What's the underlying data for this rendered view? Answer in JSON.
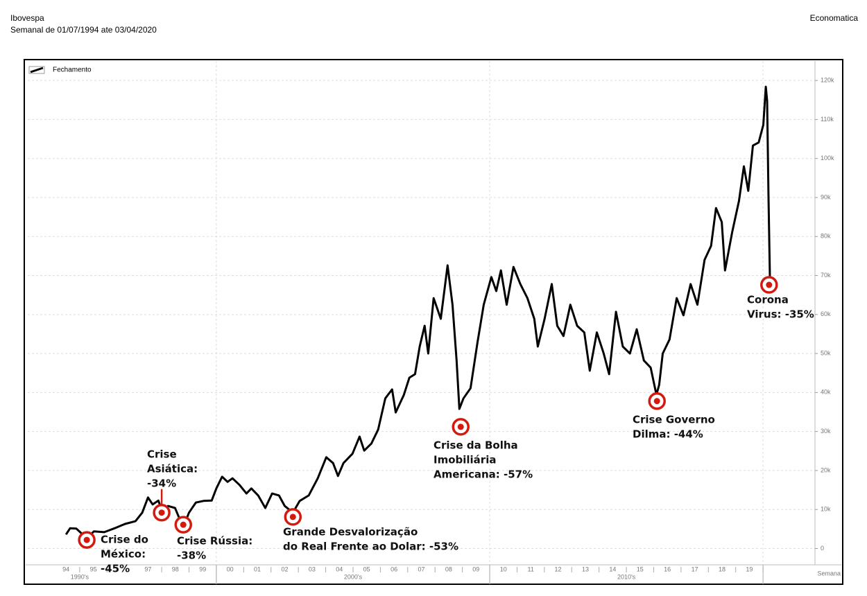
{
  "header": {
    "title": "Ibovespa",
    "subtitle": "Semanal de 01/07/1994 ate 03/04/2020",
    "source": "Economatica"
  },
  "chart_data": {
    "type": "line",
    "legend": "top-left",
    "x_axis_label": "Semana",
    "grid": true,
    "xlim": [
      1993.1,
      2021.9
    ],
    "ylim": [
      -4000,
      125000
    ],
    "yticks": [
      0,
      {
        "value": 10000,
        "label": "10k"
      },
      {
        "value": 20000,
        "label": "20k"
      },
      {
        "value": 30000,
        "label": "30k"
      },
      {
        "value": 40000,
        "label": "40k"
      },
      {
        "value": 50000,
        "label": "50k"
      },
      {
        "value": 60000,
        "label": "60k"
      },
      {
        "value": 70000,
        "label": "70k"
      },
      {
        "value": 80000,
        "label": "80k"
      },
      {
        "value": 90000,
        "label": "90k"
      },
      {
        "value": 100000,
        "label": "100k"
      },
      {
        "value": 110000,
        "label": "110k"
      },
      {
        "value": 120000,
        "label": "120k"
      }
    ],
    "xticks": [
      {
        "value": 1994.5,
        "label": "94"
      },
      {
        "value": 1995.5,
        "label": "95"
      },
      {
        "value": 1997.5,
        "label": "97"
      },
      {
        "value": 1998.5,
        "label": "98"
      },
      {
        "value": 1999.5,
        "label": "99"
      },
      {
        "value": 2000.5,
        "label": "00"
      },
      {
        "value": 2001.5,
        "label": "01"
      },
      {
        "value": 2002.5,
        "label": "02"
      },
      {
        "value": 2003.5,
        "label": "03"
      },
      {
        "value": 2004.5,
        "label": "04"
      },
      {
        "value": 2005.5,
        "label": "05"
      },
      {
        "value": 2006.5,
        "label": "06"
      },
      {
        "value": 2007.5,
        "label": "07"
      },
      {
        "value": 2008.5,
        "label": "08"
      },
      {
        "value": 2009.5,
        "label": "09"
      },
      {
        "value": 2010.5,
        "label": "10"
      },
      {
        "value": 2011.5,
        "label": "11"
      },
      {
        "value": 2012.5,
        "label": "12"
      },
      {
        "value": 2013.5,
        "label": "13"
      },
      {
        "value": 2014.5,
        "label": "14"
      },
      {
        "value": 2015.5,
        "label": "15"
      },
      {
        "value": 2016.5,
        "label": "16"
      },
      {
        "value": 2017.5,
        "label": "17"
      },
      {
        "value": 2018.5,
        "label": "18"
      },
      {
        "value": 2019.5,
        "label": "19"
      }
    ],
    "decade_ticks": [
      {
        "value": 1995,
        "label": "1990's"
      },
      {
        "value": 2005,
        "label": "2000's"
      },
      {
        "value": 2015,
        "label": "2010's"
      }
    ],
    "series": [
      {
        "name": "Fechamento",
        "color": "#000000",
        "x": [
          1994.5,
          1994.65,
          1994.88,
          1995.08,
          1995.26,
          1995.52,
          1995.9,
          1996.28,
          1996.66,
          1997.04,
          1997.29,
          1997.5,
          1997.67,
          1997.88,
          1998.03,
          1998.23,
          1998.49,
          1998.69,
          1998.82,
          1999.0,
          1999.25,
          1999.53,
          1999.83,
          2000.0,
          2000.21,
          2000.41,
          2000.59,
          2000.85,
          2001.1,
          2001.28,
          2001.53,
          2001.79,
          2002.04,
          2002.29,
          2002.5,
          2002.8,
          2003.05,
          2003.38,
          2003.71,
          2004.02,
          2004.27,
          2004.45,
          2004.65,
          2004.98,
          2005.24,
          2005.41,
          2005.67,
          2005.92,
          2006.18,
          2006.43,
          2006.56,
          2006.86,
          2007.06,
          2007.27,
          2007.44,
          2007.62,
          2007.75,
          2007.95,
          2008.21,
          2008.46,
          2008.64,
          2008.79,
          2008.89,
          2009.04,
          2009.3,
          2009.55,
          2009.78,
          2010.06,
          2010.24,
          2010.41,
          2010.62,
          2010.87,
          2011.12,
          2011.38,
          2011.63,
          2011.76,
          2012.01,
          2012.27,
          2012.47,
          2012.7,
          2012.95,
          2013.2,
          2013.46,
          2013.66,
          2013.92,
          2014.17,
          2014.37,
          2014.62,
          2014.87,
          2015.13,
          2015.38,
          2015.64,
          2015.89,
          2016.1,
          2016.2,
          2016.33,
          2016.58,
          2016.84,
          2017.09,
          2017.35,
          2017.6,
          2017.86,
          2018.1,
          2018.28,
          2018.49,
          2018.61,
          2018.87,
          2019.12,
          2019.3,
          2019.46,
          2019.63,
          2019.84,
          2020.01,
          2020.1,
          2020.15,
          2020.2,
          2020.25
        ],
        "values": [
          3600,
          5200,
          5100,
          3800,
          2600,
          4400,
          4200,
          5200,
          6300,
          7000,
          9200,
          13100,
          11300,
          12300,
          9200,
          10900,
          10400,
          7000,
          6000,
          9200,
          11800,
          12200,
          12300,
          15400,
          18400,
          17100,
          18000,
          16300,
          14100,
          15400,
          13600,
          10400,
          14100,
          13600,
          10900,
          9200,
          12200,
          13600,
          18000,
          23400,
          21900,
          18600,
          21900,
          24300,
          28700,
          25100,
          26900,
          30500,
          38500,
          40800,
          34900,
          39400,
          43800,
          44700,
          51800,
          57100,
          50000,
          64200,
          58900,
          72600,
          62500,
          48200,
          35800,
          38500,
          41100,
          52700,
          62500,
          69600,
          66000,
          71300,
          62500,
          72200,
          67800,
          64200,
          58900,
          51800,
          58900,
          67800,
          57100,
          54500,
          62500,
          57100,
          55400,
          45600,
          55400,
          50000,
          44700,
          60700,
          51800,
          50000,
          56200,
          48200,
          46400,
          39400,
          42000,
          50000,
          53600,
          64200,
          59800,
          67800,
          62500,
          74000,
          77600,
          87300,
          83700,
          71300,
          81100,
          89100,
          98000,
          91700,
          103300,
          104100,
          108600,
          118400,
          114800,
          90000,
          69600
        ]
      }
    ],
    "annotations": [
      {
        "lines": [
          "Crise do",
          "México:",
          "-45%"
        ],
        "x": 1995.26,
        "y": 2200
      },
      {
        "lines": [
          "Crise",
          "Asiática:",
          "-34%"
        ],
        "x": 1998.0,
        "y": 9200
      },
      {
        "lines": [
          "Crise Rússia:",
          "-38%"
        ],
        "x": 1998.79,
        "y": 6100
      },
      {
        "lines": [
          "Grande Desvalorização",
          "do Real Frente ao Dolar: -53%"
        ],
        "x": 2002.8,
        "y": 8100
      },
      {
        "lines": [
          "Crise da Bolha",
          "Imobiliária",
          "Americana: -57%"
        ],
        "x": 2008.94,
        "y": 31200
      },
      {
        "lines": [
          "Crise Governo",
          "Dilma: -44%"
        ],
        "x": 2016.12,
        "y": 37800
      },
      {
        "lines": [
          "Corona",
          "Virus: -35%"
        ],
        "x": 2020.22,
        "y": 67600
      }
    ]
  }
}
